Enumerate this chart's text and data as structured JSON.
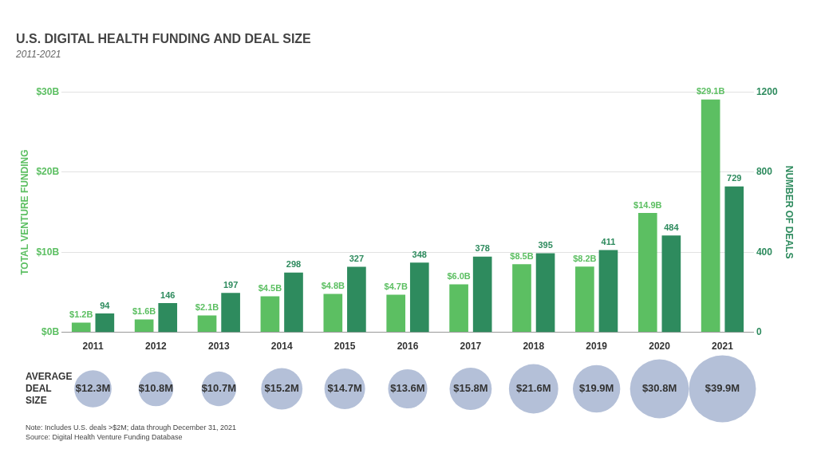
{
  "chart_data": [
    {
      "type": "bar",
      "title": "U.S. DIGITAL HEALTH FUNDING AND DEAL SIZE",
      "subtitle": "2011-2021",
      "categories": [
        "2011",
        "2012",
        "2013",
        "2014",
        "2015",
        "2016",
        "2017",
        "2018",
        "2019",
        "2020",
        "2021"
      ],
      "series": [
        {
          "name": null,
          "color": "#5cbf62",
          "axis": "y",
          "values": [
            1.2,
            1.6,
            2.1,
            4.5,
            4.8,
            4.7,
            6.0,
            8.5,
            8.2,
            14.9,
            29.1
          ],
          "value_labels": [
            "$1.2B",
            "$1.6B",
            "$2.1B",
            "$4.5B",
            "$4.8B",
            "$4.7B",
            "$6.0B",
            "$8.5B",
            "$8.2B",
            "$14.9B",
            "$29.1B"
          ]
        },
        {
          "name": null,
          "color": "#2e8b5e",
          "axis": "y2",
          "values": [
            94,
            146,
            197,
            298,
            327,
            348,
            378,
            395,
            411,
            484,
            729
          ],
          "value_labels": [
            "94",
            "146",
            "197",
            "298",
            "327",
            "348",
            "378",
            "395",
            "411",
            "484",
            "729"
          ]
        }
      ],
      "ylabel": "TOTAL VENTURE FUNDING",
      "y2label": "NUMBER OF DEALS",
      "ylim": [
        0,
        30
      ],
      "yticks": [
        {
          "value": 0,
          "label": "$0B"
        },
        {
          "value": 10,
          "label": "$10B"
        },
        {
          "value": 20,
          "label": "$20B"
        },
        {
          "value": 30,
          "label": "$30B"
        }
      ],
      "y2lim": [
        0,
        1200
      ],
      "y2ticks": [
        0,
        400,
        800,
        1200
      ],
      "grid": "y",
      "legend": false
    },
    {
      "type": "other",
      "ylabel": "AVERAGE DEAL SIZE",
      "categories": [
        null,
        null,
        null,
        null,
        null,
        null,
        null,
        null,
        null,
        null,
        null
      ],
      "values": [
        12.3,
        10.8,
        10.7,
        15.2,
        14.7,
        13.6,
        15.8,
        21.6,
        19.9,
        30.8,
        39.9
      ],
      "value_labels": [
        "$12.3M",
        "$10.8M",
        "$10.7M",
        "$15.2M",
        "$14.7M",
        "$13.6M",
        "$15.8M",
        "$21.6M",
        "$19.9M",
        "$30.8M",
        "$39.9M"
      ],
      "color": "#b4c0d8",
      "legend": false,
      "annotations": [
        "Note: Includes U.S. deals >$2M; data through December 31, 2021",
        "Source: Digital Health Venture Funding Database"
      ]
    }
  ]
}
